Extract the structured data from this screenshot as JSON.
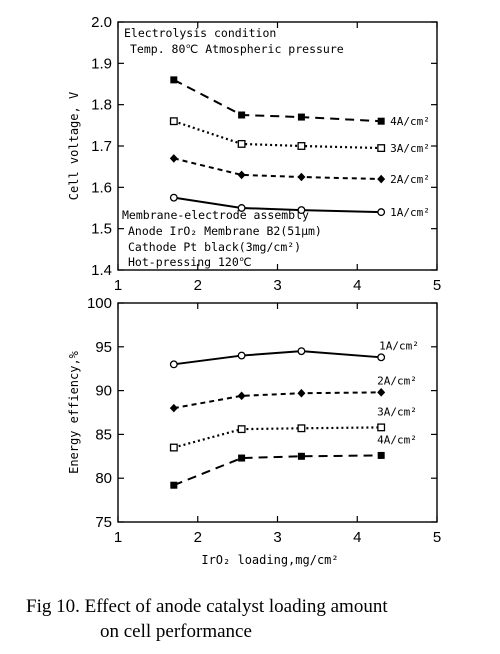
{
  "caption": {
    "line1": "Fig 10. Effect of anode catalyst loading amount",
    "line2": "on cell performance"
  },
  "chart_data": [
    {
      "type": "line",
      "xlabel": "",
      "ylabel": "Cell voltage, V",
      "xlim": [
        1,
        5
      ],
      "ylim": [
        1.4,
        2.0
      ],
      "xticks": [
        "1",
        "2",
        "3",
        "4",
        "5"
      ],
      "yticks": [
        "1.4",
        "1.5",
        "1.6",
        "1.7",
        "1.8",
        "1.9",
        "2.0"
      ],
      "grid": false,
      "annotations": [
        "Electrolysis condition",
        "Temp. 80℃ Atmospheric pressure",
        "Membrane-electrode assembly",
        "Anode IrO₂   Membrane B2(51μm)",
        "Cathode Pt black(3mg/cm²)",
        "Hot-pressing 120℃"
      ],
      "series": [
        {
          "name": "4A/cm²",
          "style": "dashed",
          "marker": "filled-square",
          "x": [
            1.7,
            2.55,
            3.3,
            4.3
          ],
          "y": [
            1.86,
            1.775,
            1.77,
            1.76
          ]
        },
        {
          "name": "3A/cm²",
          "style": "dotted",
          "marker": "open-square",
          "x": [
            1.7,
            2.55,
            3.3,
            4.3
          ],
          "y": [
            1.76,
            1.705,
            1.7,
            1.695
          ]
        },
        {
          "name": "2A/cm²",
          "style": "short-dashed",
          "marker": "filled-diamond",
          "x": [
            1.7,
            2.55,
            3.3,
            4.3
          ],
          "y": [
            1.67,
            1.63,
            1.625,
            1.62
          ]
        },
        {
          "name": "1A/cm²",
          "style": "solid",
          "marker": "open-circle",
          "x": [
            1.7,
            2.55,
            3.3,
            4.3
          ],
          "y": [
            1.575,
            1.55,
            1.545,
            1.54
          ]
        }
      ]
    },
    {
      "type": "line",
      "xlabel": "IrO₂ loading,mg/cm²",
      "ylabel": "Energy effiency,%",
      "xlim": [
        1,
        5
      ],
      "ylim": [
        75,
        100
      ],
      "xticks": [
        "1",
        "2",
        "3",
        "4",
        "5"
      ],
      "yticks": [
        "75",
        "80",
        "85",
        "90",
        "95",
        "100"
      ],
      "grid": false,
      "series": [
        {
          "name": "1A/cm²",
          "style": "solid",
          "marker": "open-circle",
          "x": [
            1.7,
            2.55,
            3.3,
            4.3
          ],
          "y": [
            93.0,
            94.0,
            94.5,
            93.8
          ]
        },
        {
          "name": "2A/cm²",
          "style": "short-dashed",
          "marker": "filled-diamond",
          "x": [
            1.7,
            2.55,
            3.3,
            4.3
          ],
          "y": [
            88.0,
            89.4,
            89.7,
            89.8
          ]
        },
        {
          "name": "3A/cm²",
          "style": "dotted",
          "marker": "open-square",
          "x": [
            1.7,
            2.55,
            3.3,
            4.3
          ],
          "y": [
            83.5,
            85.6,
            85.7,
            85.8
          ]
        },
        {
          "name": "4A/cm²",
          "style": "dashed",
          "marker": "filled-square",
          "x": [
            1.7,
            2.55,
            3.3,
            4.3
          ],
          "y": [
            79.2,
            82.3,
            82.5,
            82.6
          ]
        }
      ]
    }
  ]
}
